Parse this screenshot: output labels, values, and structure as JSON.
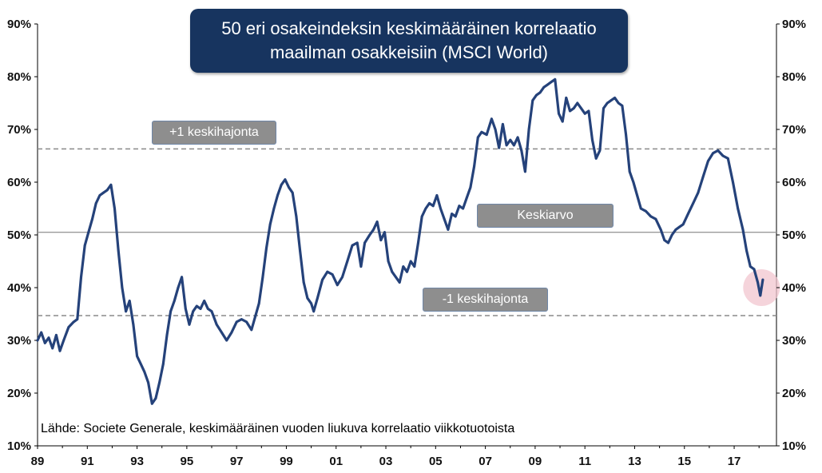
{
  "title": {
    "line1": "50 eri osakeindeksin keskimääräinen korrelaatio",
    "line2": "maailman osakkeisiin (MSCI World)"
  },
  "source": "Lähde: Societe Generale, keskimääräinen vuoden liukuva korrelaatio viikkotuotoista",
  "reference_labels": {
    "upper": "+1 keskihajonta",
    "mean": "Keskiarvo",
    "lower": "-1 keskihajonta"
  },
  "colors": {
    "title_bg": "#17345f",
    "series": "#25427a",
    "label_bg": "#8e8e8e",
    "highlight": "#f2c6cf"
  },
  "chart_data": {
    "type": "line",
    "title": "50 eri osakeindeksin keskimääräinen korrelaatio maailman osakkeisiin (MSCI World)",
    "xlabel": "",
    "ylabel": "",
    "xlim": [
      1989,
      2018.7
    ],
    "ylim": [
      10,
      90
    ],
    "x_ticks": [
      "89",
      "91",
      "93",
      "95",
      "97",
      "99",
      "01",
      "03",
      "05",
      "07",
      "09",
      "11",
      "13",
      "15",
      "17"
    ],
    "y_ticks_left": [
      "90%",
      "80%",
      "70%",
      "60%",
      "50%",
      "40%",
      "30%",
      "20%",
      "10%"
    ],
    "y_ticks_right": [
      "90%",
      "80%",
      "70%",
      "60%",
      "50%",
      "40%",
      "30%",
      "20%",
      "10%"
    ],
    "reference_lines": [
      {
        "label": "+1 keskihajonta",
        "value": 66.3,
        "style": "dashed"
      },
      {
        "label": "Keskiarvo",
        "value": 50.5,
        "style": "solid"
      },
      {
        "label": "-1 keskihajonta",
        "value": 34.7,
        "style": "dashed"
      }
    ],
    "highlight_point": {
      "x": 2018.1,
      "y": 40.0
    },
    "grid": false,
    "series": [
      {
        "values": [
          [
            1989.0,
            30.0
          ],
          [
            1989.15,
            31.5
          ],
          [
            1989.3,
            29.5
          ],
          [
            1989.45,
            30.5
          ],
          [
            1989.6,
            28.5
          ],
          [
            1989.75,
            31.0
          ],
          [
            1989.9,
            28.0
          ],
          [
            1990.05,
            30.0
          ],
          [
            1990.25,
            32.5
          ],
          [
            1990.45,
            33.5
          ],
          [
            1990.6,
            34.0
          ],
          [
            1990.75,
            42.0
          ],
          [
            1990.9,
            48.0
          ],
          [
            1991.05,
            50.5
          ],
          [
            1991.2,
            53.0
          ],
          [
            1991.35,
            56.0
          ],
          [
            1991.5,
            57.5
          ],
          [
            1991.65,
            58.0
          ],
          [
            1991.8,
            58.5
          ],
          [
            1991.95,
            59.5
          ],
          [
            1992.1,
            55.0
          ],
          [
            1992.25,
            47.0
          ],
          [
            1992.4,
            40.0
          ],
          [
            1992.55,
            35.5
          ],
          [
            1992.7,
            37.5
          ],
          [
            1992.85,
            33.0
          ],
          [
            1993.0,
            27.0
          ],
          [
            1993.15,
            25.5
          ],
          [
            1993.3,
            24.0
          ],
          [
            1993.45,
            22.0
          ],
          [
            1993.6,
            18.0
          ],
          [
            1993.75,
            19.0
          ],
          [
            1993.9,
            22.0
          ],
          [
            1994.05,
            25.5
          ],
          [
            1994.2,
            31.0
          ],
          [
            1994.35,
            35.5
          ],
          [
            1994.5,
            37.5
          ],
          [
            1994.65,
            40.0
          ],
          [
            1994.8,
            42.0
          ],
          [
            1994.95,
            36.0
          ],
          [
            1995.1,
            33.0
          ],
          [
            1995.25,
            35.5
          ],
          [
            1995.4,
            36.5
          ],
          [
            1995.55,
            36.0
          ],
          [
            1995.7,
            37.5
          ],
          [
            1995.85,
            36.0
          ],
          [
            1996.0,
            35.5
          ],
          [
            1996.2,
            33.0
          ],
          [
            1996.4,
            31.5
          ],
          [
            1996.6,
            30.0
          ],
          [
            1996.8,
            31.5
          ],
          [
            1997.0,
            33.5
          ],
          [
            1997.2,
            34.0
          ],
          [
            1997.4,
            33.5
          ],
          [
            1997.6,
            32.0
          ],
          [
            1997.75,
            34.5
          ],
          [
            1997.9,
            37.0
          ],
          [
            1998.05,
            42.0
          ],
          [
            1998.2,
            47.5
          ],
          [
            1998.35,
            52.0
          ],
          [
            1998.5,
            55.0
          ],
          [
            1998.65,
            57.5
          ],
          [
            1998.8,
            59.5
          ],
          [
            1998.95,
            60.5
          ],
          [
            1999.1,
            59.0
          ],
          [
            1999.25,
            58.0
          ],
          [
            1999.4,
            53.5
          ],
          [
            1999.55,
            47.0
          ],
          [
            1999.7,
            41.0
          ],
          [
            1999.85,
            38.0
          ],
          [
            2000.0,
            37.0
          ],
          [
            2000.1,
            35.5
          ],
          [
            2000.25,
            38.0
          ],
          [
            2000.45,
            41.5
          ],
          [
            2000.65,
            43.0
          ],
          [
            2000.85,
            42.5
          ],
          [
            2001.05,
            40.5
          ],
          [
            2001.25,
            42.0
          ],
          [
            2001.45,
            45.0
          ],
          [
            2001.65,
            48.0
          ],
          [
            2001.85,
            48.5
          ],
          [
            2002.0,
            44.0
          ],
          [
            2002.15,
            48.5
          ],
          [
            2002.35,
            50.0
          ],
          [
            2002.5,
            51.0
          ],
          [
            2002.65,
            52.5
          ],
          [
            2002.8,
            49.0
          ],
          [
            2002.95,
            50.5
          ],
          [
            2003.1,
            45.0
          ],
          [
            2003.25,
            43.0
          ],
          [
            2003.4,
            42.0
          ],
          [
            2003.55,
            41.0
          ],
          [
            2003.7,
            44.0
          ],
          [
            2003.85,
            43.0
          ],
          [
            2004.0,
            45.0
          ],
          [
            2004.15,
            44.0
          ],
          [
            2004.3,
            48.5
          ],
          [
            2004.45,
            53.5
          ],
          [
            2004.6,
            55.0
          ],
          [
            2004.75,
            56.0
          ],
          [
            2004.9,
            55.5
          ],
          [
            2005.05,
            57.5
          ],
          [
            2005.2,
            55.0
          ],
          [
            2005.35,
            53.0
          ],
          [
            2005.5,
            51.0
          ],
          [
            2005.65,
            54.0
          ],
          [
            2005.8,
            53.5
          ],
          [
            2005.95,
            55.5
          ],
          [
            2006.1,
            55.0
          ],
          [
            2006.25,
            57.0
          ],
          [
            2006.4,
            59.0
          ],
          [
            2006.55,
            63.0
          ],
          [
            2006.7,
            68.5
          ],
          [
            2006.85,
            69.5
          ],
          [
            2007.05,
            69.0
          ],
          [
            2007.25,
            72.0
          ],
          [
            2007.4,
            70.0
          ],
          [
            2007.55,
            66.5
          ],
          [
            2007.7,
            71.0
          ],
          [
            2007.85,
            67.0
          ],
          [
            2008.0,
            68.0
          ],
          [
            2008.15,
            67.0
          ],
          [
            2008.3,
            68.5
          ],
          [
            2008.45,
            66.0
          ],
          [
            2008.6,
            62.0
          ],
          [
            2008.75,
            70.0
          ],
          [
            2008.9,
            75.5
          ],
          [
            2009.05,
            76.5
          ],
          [
            2009.2,
            77.0
          ],
          [
            2009.35,
            78.0
          ],
          [
            2009.5,
            78.5
          ],
          [
            2009.65,
            79.0
          ],
          [
            2009.8,
            79.5
          ],
          [
            2009.95,
            73.0
          ],
          [
            2010.1,
            71.5
          ],
          [
            2010.25,
            76.0
          ],
          [
            2010.4,
            73.5
          ],
          [
            2010.55,
            74.0
          ],
          [
            2010.7,
            75.0
          ],
          [
            2010.85,
            74.0
          ],
          [
            2011.0,
            73.0
          ],
          [
            2011.15,
            73.5
          ],
          [
            2011.3,
            68.0
          ],
          [
            2011.45,
            64.5
          ],
          [
            2011.6,
            66.0
          ],
          [
            2011.75,
            74.0
          ],
          [
            2011.9,
            75.0
          ],
          [
            2012.05,
            75.5
          ],
          [
            2012.2,
            76.0
          ],
          [
            2012.35,
            75.0
          ],
          [
            2012.5,
            74.5
          ],
          [
            2012.65,
            69.0
          ],
          [
            2012.8,
            62.0
          ],
          [
            2012.95,
            60.0
          ],
          [
            2013.1,
            57.5
          ],
          [
            2013.25,
            55.0
          ],
          [
            2013.45,
            54.5
          ],
          [
            2013.65,
            53.5
          ],
          [
            2013.85,
            53.0
          ],
          [
            2014.05,
            51.0
          ],
          [
            2014.2,
            49.0
          ],
          [
            2014.35,
            48.5
          ],
          [
            2014.5,
            50.0
          ],
          [
            2014.65,
            51.0
          ],
          [
            2014.8,
            51.5
          ],
          [
            2014.95,
            52.0
          ],
          [
            2015.15,
            54.0
          ],
          [
            2015.35,
            56.0
          ],
          [
            2015.55,
            58.0
          ],
          [
            2015.75,
            61.0
          ],
          [
            2015.95,
            64.0
          ],
          [
            2016.15,
            65.5
          ],
          [
            2016.35,
            66.0
          ],
          [
            2016.55,
            65.0
          ],
          [
            2016.75,
            64.5
          ],
          [
            2016.95,
            60.0
          ],
          [
            2017.15,
            55.0
          ],
          [
            2017.35,
            51.0
          ],
          [
            2017.5,
            47.0
          ],
          [
            2017.65,
            44.0
          ],
          [
            2017.8,
            43.5
          ],
          [
            2017.95,
            41.0
          ],
          [
            2018.05,
            38.5
          ],
          [
            2018.15,
            41.5
          ]
        ]
      }
    ]
  }
}
